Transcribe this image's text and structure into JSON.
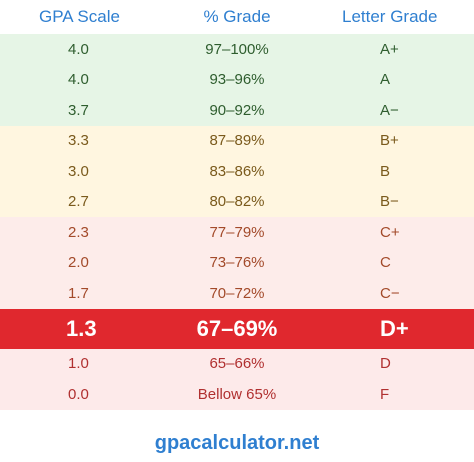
{
  "headers": {
    "gpa": "GPA Scale",
    "percent": "% Grade",
    "letter": "Letter Grade"
  },
  "rows": [
    {
      "gpa": "4.0",
      "percent": "97–100%",
      "letter": "A+"
    },
    {
      "gpa": "4.0",
      "percent": "93–96%",
      "letter": "A"
    },
    {
      "gpa": "3.7",
      "percent": "90–92%",
      "letter": "A−"
    },
    {
      "gpa": "3.3",
      "percent": "87–89%",
      "letter": "B+"
    },
    {
      "gpa": "3.0",
      "percent": "83–86%",
      "letter": "B"
    },
    {
      "gpa": "2.7",
      "percent": "80–82%",
      "letter": "B−"
    },
    {
      "gpa": "2.3",
      "percent": "77–79%",
      "letter": "C+"
    },
    {
      "gpa": "2.0",
      "percent": "73–76%",
      "letter": "C"
    },
    {
      "gpa": "1.7",
      "percent": "70–72%",
      "letter": "C−"
    },
    {
      "gpa": "1.3",
      "percent": "67–69%",
      "letter": "D+"
    },
    {
      "gpa": "1.0",
      "percent": "65–66%",
      "letter": "D"
    },
    {
      "gpa": "0.0",
      "percent": "Bellow 65%",
      "letter": "F"
    }
  ],
  "highlighted_row": "D+",
  "footer": "gpacalculator.net",
  "colors": {
    "header_text": "#2f7fd0",
    "a_band": "#e6f5e6",
    "b_band": "#fff6e0",
    "c_band": "#fdecea",
    "highlight": "#e0282e",
    "footer_text": "#2f7fd0"
  }
}
